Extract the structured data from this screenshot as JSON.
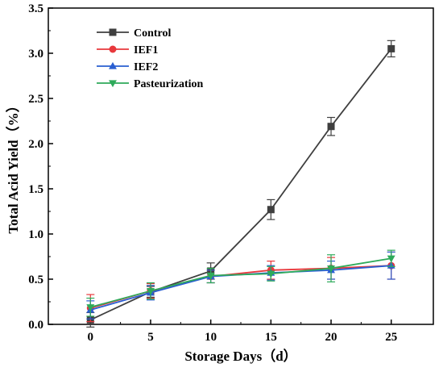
{
  "chart_data": {
    "type": "line",
    "title": "",
    "xlabel": "Storage Days（d）",
    "ylabel": "Total Acid Yield（%）",
    "x": [
      0,
      5,
      10,
      15,
      20,
      25
    ],
    "xlim": [
      -3.5,
      28.5
    ],
    "ylim": [
      0,
      3.5
    ],
    "x_ticks": [
      "0",
      "5",
      "10",
      "15",
      "20",
      "25"
    ],
    "y_ticks": [
      "0.0",
      "0.5",
      "1.0",
      "1.5",
      "2.0",
      "2.5",
      "3.0",
      "3.5"
    ],
    "grid": false,
    "legend_position": "top-left",
    "series": [
      {
        "name": "Control",
        "color": "#3f3f3f",
        "marker": "square",
        "values": [
          0.05,
          0.36,
          0.59,
          1.27,
          2.19,
          3.05
        ],
        "errors": [
          0.08,
          0.06,
          0.09,
          0.11,
          0.1,
          0.09
        ]
      },
      {
        "name": "IEF1",
        "color": "#e8383c",
        "marker": "circle",
        "values": [
          0.18,
          0.37,
          0.53,
          0.6,
          0.62,
          0.65
        ],
        "errors": [
          0.15,
          0.08,
          0.07,
          0.1,
          0.12,
          0.15
        ]
      },
      {
        "name": "IEF2",
        "color": "#2a5fd1",
        "marker": "triangle-up",
        "values": [
          0.16,
          0.35,
          0.53,
          0.57,
          0.6,
          0.65
        ],
        "errors": [
          0.1,
          0.08,
          0.07,
          0.08,
          0.1,
          0.15
        ]
      },
      {
        "name": "Pasteurization",
        "color": "#2eaa5a",
        "marker": "triangle-down",
        "values": [
          0.19,
          0.37,
          0.54,
          0.56,
          0.62,
          0.73
        ],
        "errors": [
          0.1,
          0.09,
          0.08,
          0.08,
          0.15,
          0.09
        ]
      }
    ]
  }
}
